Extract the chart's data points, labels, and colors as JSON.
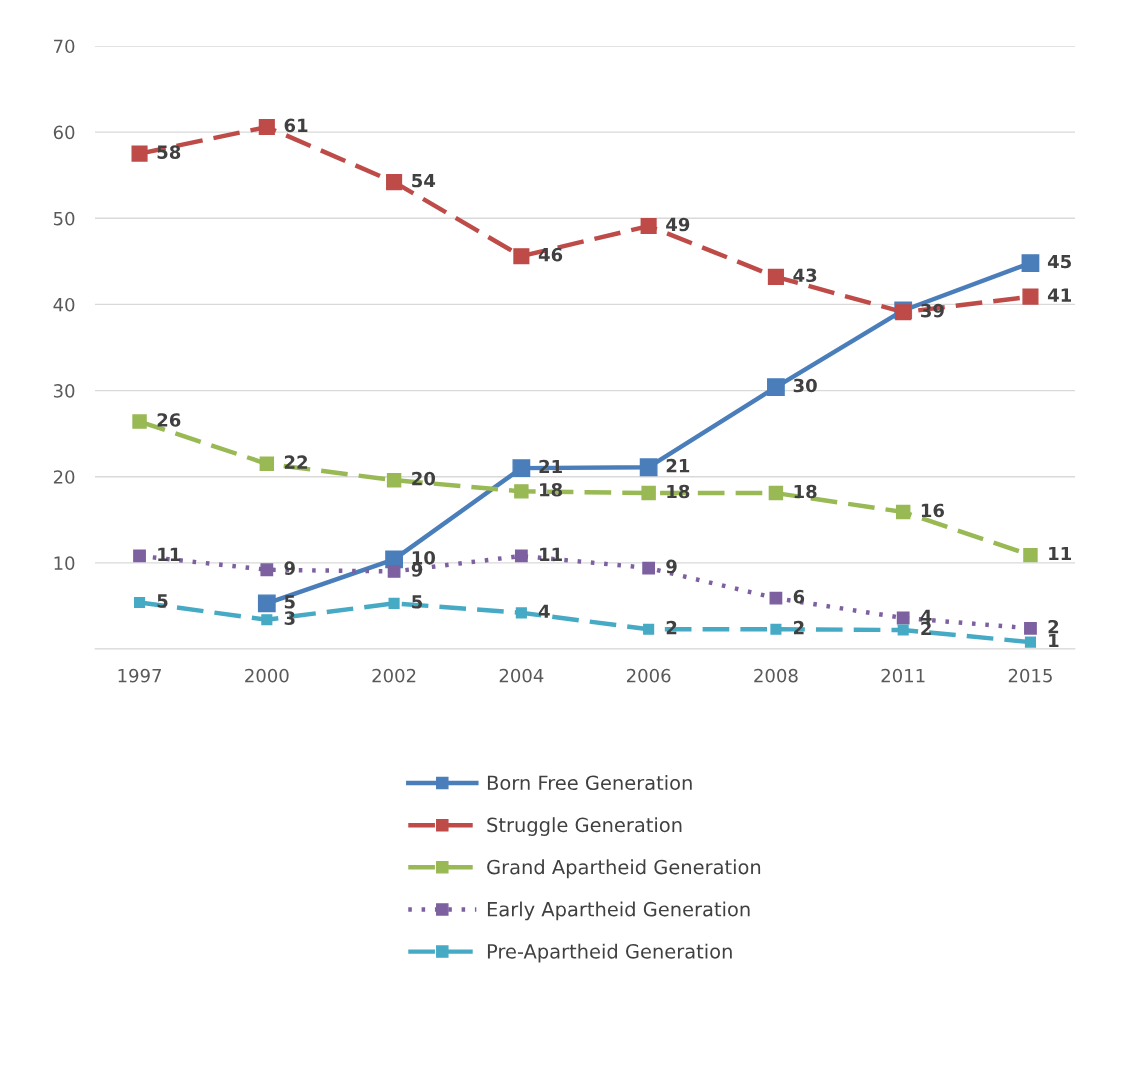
{
  "chart_data": {
    "type": "line",
    "categories": [
      "1997",
      "2000",
      "2002",
      "2004",
      "2006",
      "2008",
      "2011",
      "2015"
    ],
    "series": [
      {
        "name": "Born Free Generation",
        "color": "#4a7ebb",
        "line_style": "solid",
        "values": [
          null,
          5.3,
          10.4,
          21.0,
          21.1,
          30.4,
          39.3,
          44.8
        ],
        "value_labels": [
          null,
          "5",
          "10",
          "21",
          "21",
          "30",
          null,
          "45"
        ]
      },
      {
        "name": "Struggle Generation",
        "color": "#be4b48",
        "line_style": "dashed",
        "values": [
          57.5,
          60.6,
          54.2,
          45.6,
          49.1,
          43.2,
          39.1,
          40.9
        ],
        "value_labels": [
          "58",
          "61",
          "54",
          "46",
          "49",
          "43",
          "39",
          "41"
        ]
      },
      {
        "name": "Grand Apartheid Generation",
        "color": "#98b954",
        "line_style": "dashed",
        "values": [
          26.4,
          21.5,
          19.6,
          18.3,
          18.1,
          18.1,
          15.9,
          10.9
        ],
        "value_labels": [
          "26",
          "22",
          "20",
          "18",
          "18",
          "18",
          "16",
          "11"
        ]
      },
      {
        "name": "Early Apartheid Generation",
        "color": "#7d60a0",
        "line_style": "dotted",
        "values": [
          10.8,
          9.2,
          9.0,
          10.8,
          9.4,
          5.9,
          3.6,
          2.4
        ],
        "value_labels": [
          "11",
          "9",
          "9",
          "11",
          "9",
          "6",
          "4",
          "2"
        ]
      },
      {
        "name": "Pre-Apartheid Generation",
        "color": "#46aac5",
        "line_style": "dashed",
        "values": [
          5.4,
          3.4,
          5.3,
          4.2,
          2.3,
          2.3,
          2.2,
          0.8
        ],
        "value_labels": [
          "5",
          "3",
          "5",
          "4",
          "2",
          "2",
          "2",
          "1"
        ]
      }
    ],
    "ylim": [
      0,
      70
    ],
    "yticks": [
      {
        "value": 0,
        "label": null
      },
      10,
      20,
      30,
      40,
      50,
      60,
      70
    ],
    "grid": "y",
    "legend": "bottom",
    "marker": "square"
  }
}
